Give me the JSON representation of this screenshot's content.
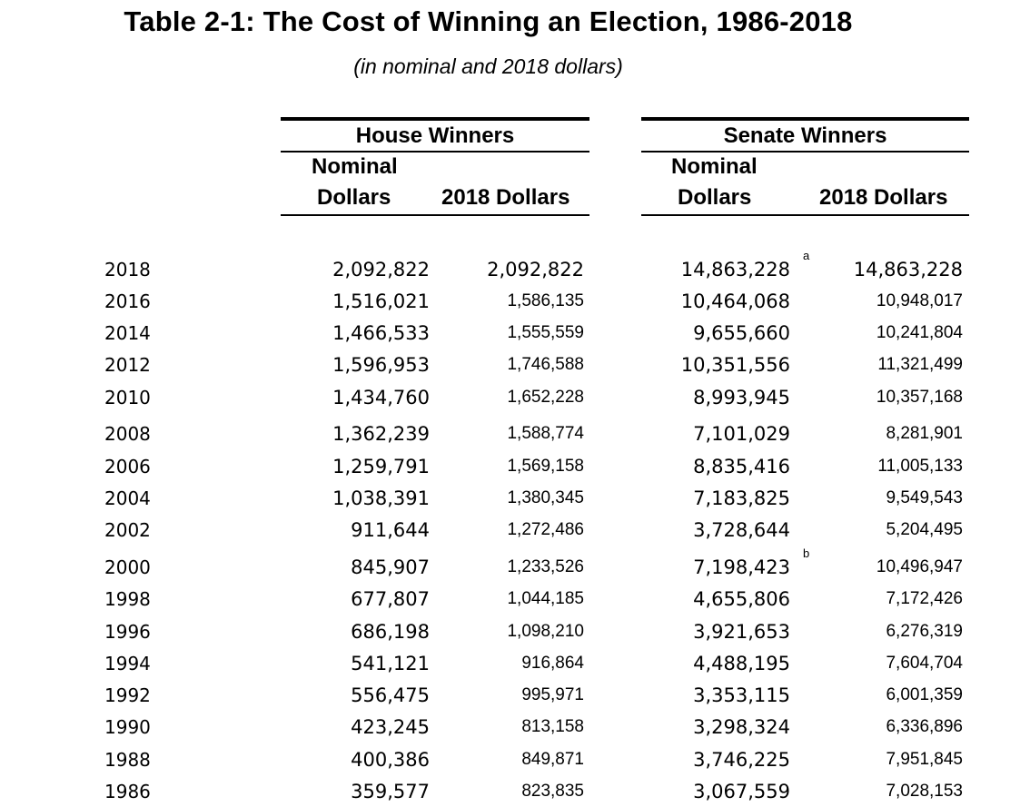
{
  "title": "Table 2-1: The Cost of Winning an Election, 1986-2018",
  "subtitle": "(in nominal and 2018 dollars)",
  "groups": {
    "house": "House Winners",
    "senate": "Senate Winners"
  },
  "columns": {
    "nominal_line1": "Nominal",
    "nominal_line2": "Dollars",
    "real": "2018 Dollars"
  },
  "rows": [
    {
      "year": "2018",
      "house_nominal": "2,092,822",
      "house_2018": "2,092,822",
      "senate_nominal": "14,863,228",
      "senate_note": "a",
      "senate_2018": "14,863,228"
    },
    {
      "year": "2016",
      "house_nominal": "1,516,021",
      "house_2018": "1,586,135",
      "senate_nominal": "10,464,068",
      "senate_note": "",
      "senate_2018": "10,948,017"
    },
    {
      "year": "2014",
      "house_nominal": "1,466,533",
      "house_2018": "1,555,559",
      "senate_nominal": "9,655,660",
      "senate_note": "",
      "senate_2018": "10,241,804"
    },
    {
      "year": "2012",
      "house_nominal": "1,596,953",
      "house_2018": "1,746,588",
      "senate_nominal": "10,351,556",
      "senate_note": "",
      "senate_2018": "11,321,499"
    },
    {
      "year": "2010",
      "house_nominal": "1,434,760",
      "house_2018": "1,652,228",
      "senate_nominal": "8,993,945",
      "senate_note": "",
      "senate_2018": "10,357,168"
    },
    {
      "year": "2008",
      "house_nominal": "1,362,239",
      "house_2018": "1,588,774",
      "senate_nominal": "7,101,029",
      "senate_note": "",
      "senate_2018": "8,281,901"
    },
    {
      "year": "2006",
      "house_nominal": "1,259,791",
      "house_2018": "1,569,158",
      "senate_nominal": "8,835,416",
      "senate_note": "",
      "senate_2018": "11,005,133"
    },
    {
      "year": "2004",
      "house_nominal": "1,038,391",
      "house_2018": "1,380,345",
      "senate_nominal": "7,183,825",
      "senate_note": "",
      "senate_2018": "9,549,543"
    },
    {
      "year": "2002",
      "house_nominal": "911,644",
      "house_2018": "1,272,486",
      "senate_nominal": "3,728,644",
      "senate_note": "",
      "senate_2018": "5,204,495"
    },
    {
      "year": "2000",
      "house_nominal": "845,907",
      "house_2018": "1,233,526",
      "senate_nominal": "7,198,423",
      "senate_note": "b",
      "senate_2018": "10,496,947"
    },
    {
      "year": "1998",
      "house_nominal": "677,807",
      "house_2018": "1,044,185",
      "senate_nominal": "4,655,806",
      "senate_note": "",
      "senate_2018": "7,172,426"
    },
    {
      "year": "1996",
      "house_nominal": "686,198",
      "house_2018": "1,098,210",
      "senate_nominal": "3,921,653",
      "senate_note": "",
      "senate_2018": "6,276,319"
    },
    {
      "year": "1994",
      "house_nominal": "541,121",
      "house_2018": "916,864",
      "senate_nominal": "4,488,195",
      "senate_note": "",
      "senate_2018": "7,604,704"
    },
    {
      "year": "1992",
      "house_nominal": "556,475",
      "house_2018": "995,971",
      "senate_nominal": "3,353,115",
      "senate_note": "",
      "senate_2018": "6,001,359"
    },
    {
      "year": "1990",
      "house_nominal": "423,245",
      "house_2018": "813,158",
      "senate_nominal": "3,298,324",
      "senate_note": "",
      "senate_2018": "6,336,896"
    },
    {
      "year": "1988",
      "house_nominal": "400,386",
      "house_2018": "849,871",
      "senate_nominal": "3,746,225",
      "senate_note": "",
      "senate_2018": "7,951,845"
    },
    {
      "year": "1986",
      "house_nominal": "359,577",
      "house_2018": "823,835",
      "senate_nominal": "3,067,559",
      "senate_note": "",
      "senate_2018": "7,028,153"
    }
  ]
}
